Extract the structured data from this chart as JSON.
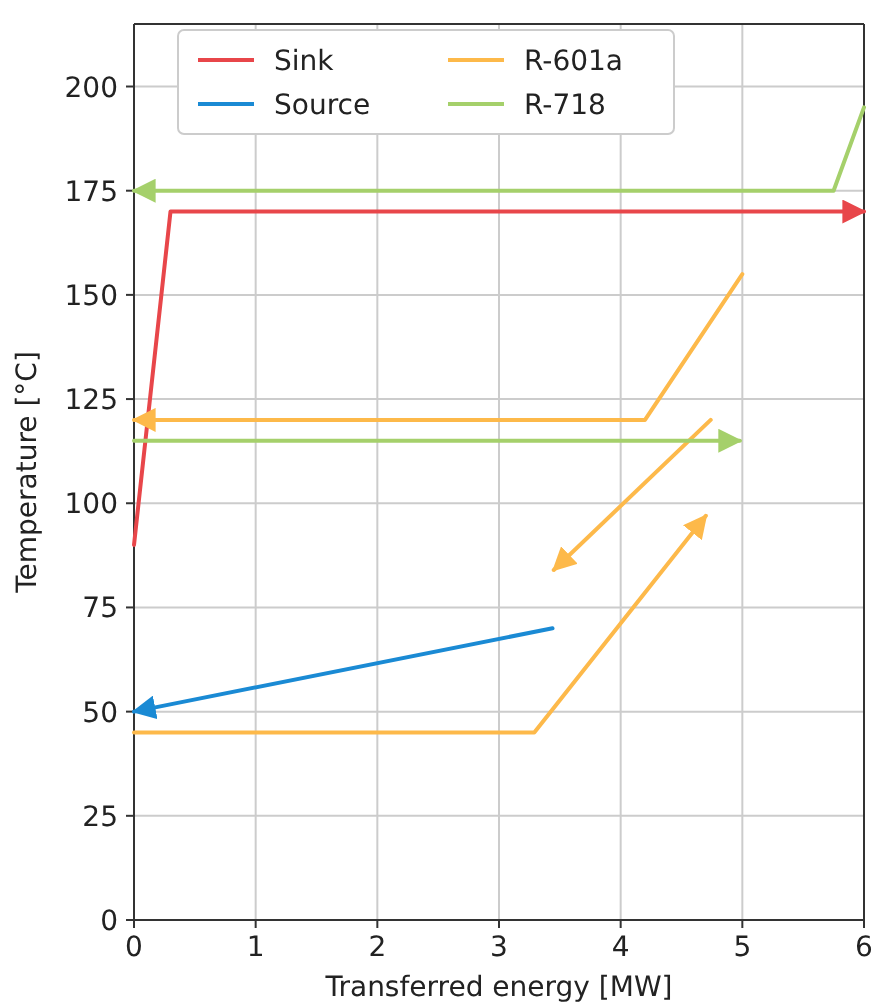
{
  "chart_data": {
    "type": "line",
    "xlabel": "Transferred energy [MW]",
    "ylabel": "Temperature [°C]",
    "xlim": [
      0,
      6
    ],
    "ylim": [
      0,
      215
    ],
    "xticks": [
      0,
      1,
      2,
      3,
      4,
      5,
      6
    ],
    "yticks": [
      0,
      25,
      50,
      75,
      100,
      125,
      150,
      175,
      200
    ],
    "grid": true,
    "legend": "top left",
    "marker": "none",
    "line_style": "solid",
    "series": [
      {
        "name": "Sink",
        "color": "#e8464a",
        "x": [
          0,
          0.3,
          6
        ],
        "values": [
          90,
          170,
          170
        ]
      },
      {
        "name": "Source",
        "color": "#1a8ad4",
        "x": [
          3.44,
          0
        ],
        "values": [
          70,
          50
        ]
      },
      {
        "name": "R-601a",
        "color": "#fdb94a",
        "x": [
          0,
          3.29,
          4.7
        ],
        "values": [
          45,
          45,
          97
        ]
      },
      {
        "color": "#fdb94a",
        "x": [
          4.74,
          3.45
        ],
        "values": [
          120,
          84
        ]
      },
      {
        "color": "#fdb94a",
        "x": [
          5,
          4.2,
          0
        ],
        "values": [
          155,
          120,
          120
        ]
      },
      {
        "name": "R-718",
        "color": "#a5d06b",
        "x": [
          6,
          5.75,
          0
        ],
        "values": [
          195,
          175,
          175
        ]
      },
      {
        "color": "#a5d06b",
        "x": [
          0,
          4.98
        ],
        "values": [
          115,
          115
        ]
      }
    ]
  }
}
